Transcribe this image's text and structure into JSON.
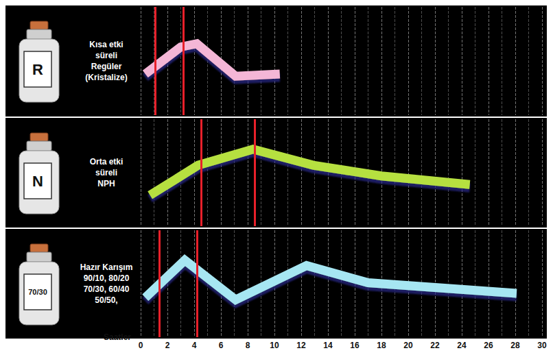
{
  "chart_data": [
    {
      "type": "line",
      "title": [
        "Kısa etki",
        "süreli",
        "Regüler",
        "(Kristalize)"
      ],
      "icon_label": "R",
      "x": [
        0.35,
        3.0,
        4.2,
        7.1,
        10.4
      ],
      "values": [
        3.8,
        6.3,
        6.6,
        3.6,
        3.8
      ],
      "color": "#f4b6d6",
      "markers": {
        "x": [
          1.1,
          3.2
        ],
        "color": "#e8202a"
      },
      "xlim": [
        0,
        30
      ],
      "xticks": [
        0,
        2,
        4,
        6,
        8,
        10,
        12,
        14,
        16,
        18,
        20,
        22,
        24,
        26,
        28,
        30
      ],
      "ylim": [
        0,
        10
      ],
      "grid": true,
      "tick_labels": false
    },
    {
      "type": "line",
      "title": [
        "Orta etki",
        "süreli",
        "NPH"
      ],
      "icon_label": "N",
      "x": [
        0.7,
        4.3,
        8.4,
        12.9,
        18.0,
        24.6
      ],
      "values": [
        2.9,
        5.7,
        7.2,
        5.7,
        4.7,
        3.9
      ],
      "color": "#b6e040",
      "markers": {
        "x": [
          4.5,
          8.5
        ],
        "color": "#e8202a"
      },
      "xlim": [
        0,
        30
      ],
      "xticks": [
        0,
        2,
        4,
        6,
        8,
        10,
        12,
        14,
        16,
        18,
        20,
        22,
        24,
        26,
        28,
        30
      ],
      "ylim": [
        0,
        10
      ],
      "grid": true,
      "tick_labels": false
    },
    {
      "type": "line",
      "title": [
        "Hazır Karışım",
        "90/10, 80/20",
        "70/30, 60/40",
        "50/50,"
      ],
      "icon_label": "70/30",
      "x": [
        0.35,
        3.3,
        7.1,
        12.4,
        17.0,
        28.1
      ],
      "values": [
        3.7,
        7.2,
        3.5,
        6.7,
        5.1,
        4.1
      ],
      "color": "#a6e6f2",
      "markers": {
        "x": [
          1.4,
          4.2
        ],
        "color": "#e8202a"
      },
      "xlabel": "Saatler",
      "xlim": [
        0,
        30
      ],
      "xticks": [
        0,
        2,
        4,
        6,
        8,
        10,
        12,
        14,
        16,
        18,
        20,
        22,
        24,
        26,
        28,
        30
      ],
      "ylim": [
        0,
        10
      ],
      "grid": true,
      "tick_labels": "x"
    }
  ]
}
